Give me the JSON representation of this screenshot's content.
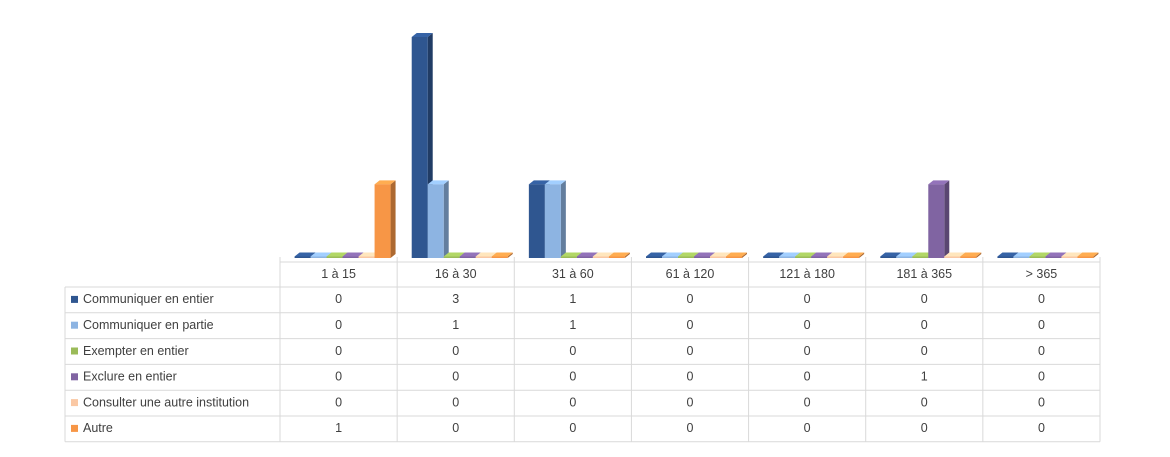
{
  "chart_data": {
    "type": "bar",
    "categories": [
      "1 à 15",
      "16 à 30",
      "31 à 60",
      "61 à 120",
      "121 à 180",
      "181 à 365",
      "> 365"
    ],
    "series": [
      {
        "name": "Communiquer en entier",
        "color": "#2f5690",
        "values": [
          0,
          3,
          1,
          0,
          0,
          0,
          0
        ]
      },
      {
        "name": "Communiquer en partie",
        "color": "#8db4e2",
        "values": [
          0,
          1,
          1,
          0,
          0,
          0,
          0
        ]
      },
      {
        "name": "Exempter en entier",
        "color": "#9bbb59",
        "values": [
          0,
          0,
          0,
          0,
          0,
          0,
          0
        ]
      },
      {
        "name": "Exclure en entier",
        "color": "#8064a2",
        "values": [
          0,
          0,
          0,
          0,
          0,
          1,
          0
        ]
      },
      {
        "name": "Consulter une autre institution",
        "color": "#fac8a4",
        "values": [
          0,
          0,
          0,
          0,
          0,
          0,
          0
        ]
      },
      {
        "name": "Autre",
        "color": "#f79646",
        "values": [
          1,
          0,
          0,
          0,
          0,
          0,
          0
        ]
      }
    ]
  }
}
